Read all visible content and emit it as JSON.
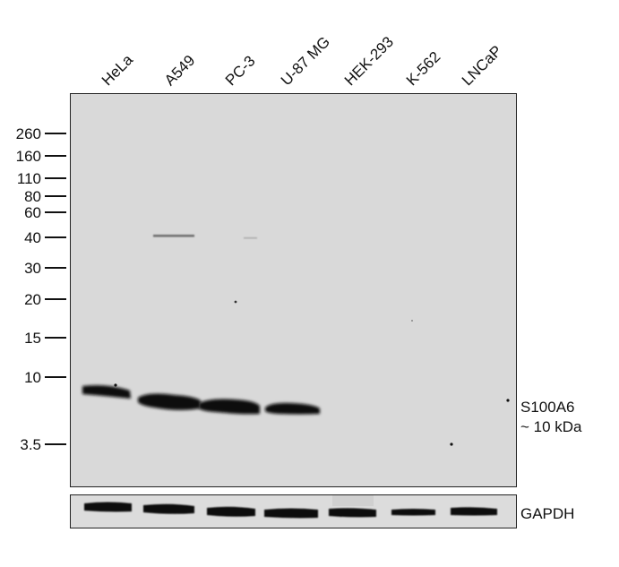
{
  "lanes": [
    "HeLa",
    "A549",
    "PC-3",
    "U-87 MG",
    "HEK-293",
    "K-562",
    "LNCaP"
  ],
  "markers": [
    "260",
    "160",
    "110",
    "80",
    "60",
    "40",
    "30",
    "20",
    "15",
    "10",
    "3.5"
  ],
  "target": {
    "name": "S100A6",
    "size": "~ 10 kDa"
  },
  "loading_control": "GAPDH",
  "colors": {
    "membrane": "#d9d9d9",
    "band": "#111111"
  }
}
